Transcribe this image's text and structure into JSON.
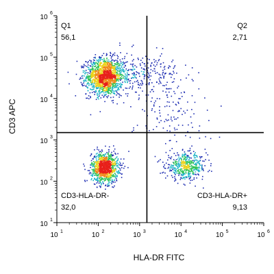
{
  "chart_data": {
    "type": "scatter",
    "subtype": "flow-cytometry-density-dot-plot",
    "xlabel": "HLA-DR FITC",
    "ylabel": "CD3 APC",
    "x_scale": "log",
    "y_scale": "log",
    "xlim": [
      10,
      1000000
    ],
    "ylim": [
      10,
      1000000
    ],
    "x_ticks": [
      {
        "base": "10",
        "exp": "1"
      },
      {
        "base": "10",
        "exp": "2"
      },
      {
        "base": "10",
        "exp": "3"
      },
      {
        "base": "10",
        "exp": "4"
      },
      {
        "base": "10",
        "exp": "5"
      },
      {
        "base": "10",
        "exp": "6"
      }
    ],
    "y_ticks": [
      {
        "base": "10",
        "exp": "1"
      },
      {
        "base": "10",
        "exp": "2"
      },
      {
        "base": "10",
        "exp": "3"
      },
      {
        "base": "10",
        "exp": "4"
      },
      {
        "base": "10",
        "exp": "5"
      },
      {
        "base": "10",
        "exp": "6"
      }
    ],
    "gates": {
      "x": 1500,
      "y": 1500
    },
    "quadrants": [
      {
        "name": "Q1",
        "value": "56,1",
        "position": "top-left"
      },
      {
        "name": "Q2",
        "value": "2,71",
        "position": "top-right"
      },
      {
        "name": "CD3-HLA-DR-",
        "value": "32,0",
        "position": "bottom-left"
      },
      {
        "name": "CD3-HLA-DR+",
        "value": "9,13",
        "position": "bottom-right"
      }
    ],
    "populations": [
      {
        "center": [
          140,
          35000
        ],
        "spread_log": [
          0.22,
          0.22
        ],
        "count": 1500
      },
      {
        "center": [
          140,
          220
        ],
        "spread_log": [
          0.16,
          0.18
        ],
        "count": 1100
      },
      {
        "center": [
          13000,
          230
        ],
        "spread_log": [
          0.25,
          0.15
        ],
        "count": 500
      },
      {
        "center": [
          900,
          40000
        ],
        "spread_log": [
          0.5,
          0.25
        ],
        "count": 300
      },
      {
        "center": [
          6000,
          5000
        ],
        "spread_log": [
          0.45,
          0.55
        ],
        "count": 140
      }
    ],
    "colors": {
      "dots": "#1a2ab0",
      "density_high": "#e8201a",
      "density_mid": "#ecd21a",
      "density_low": "#33c45a",
      "axes": "#000000",
      "gate_lines": "#000000"
    },
    "grid": false
  }
}
